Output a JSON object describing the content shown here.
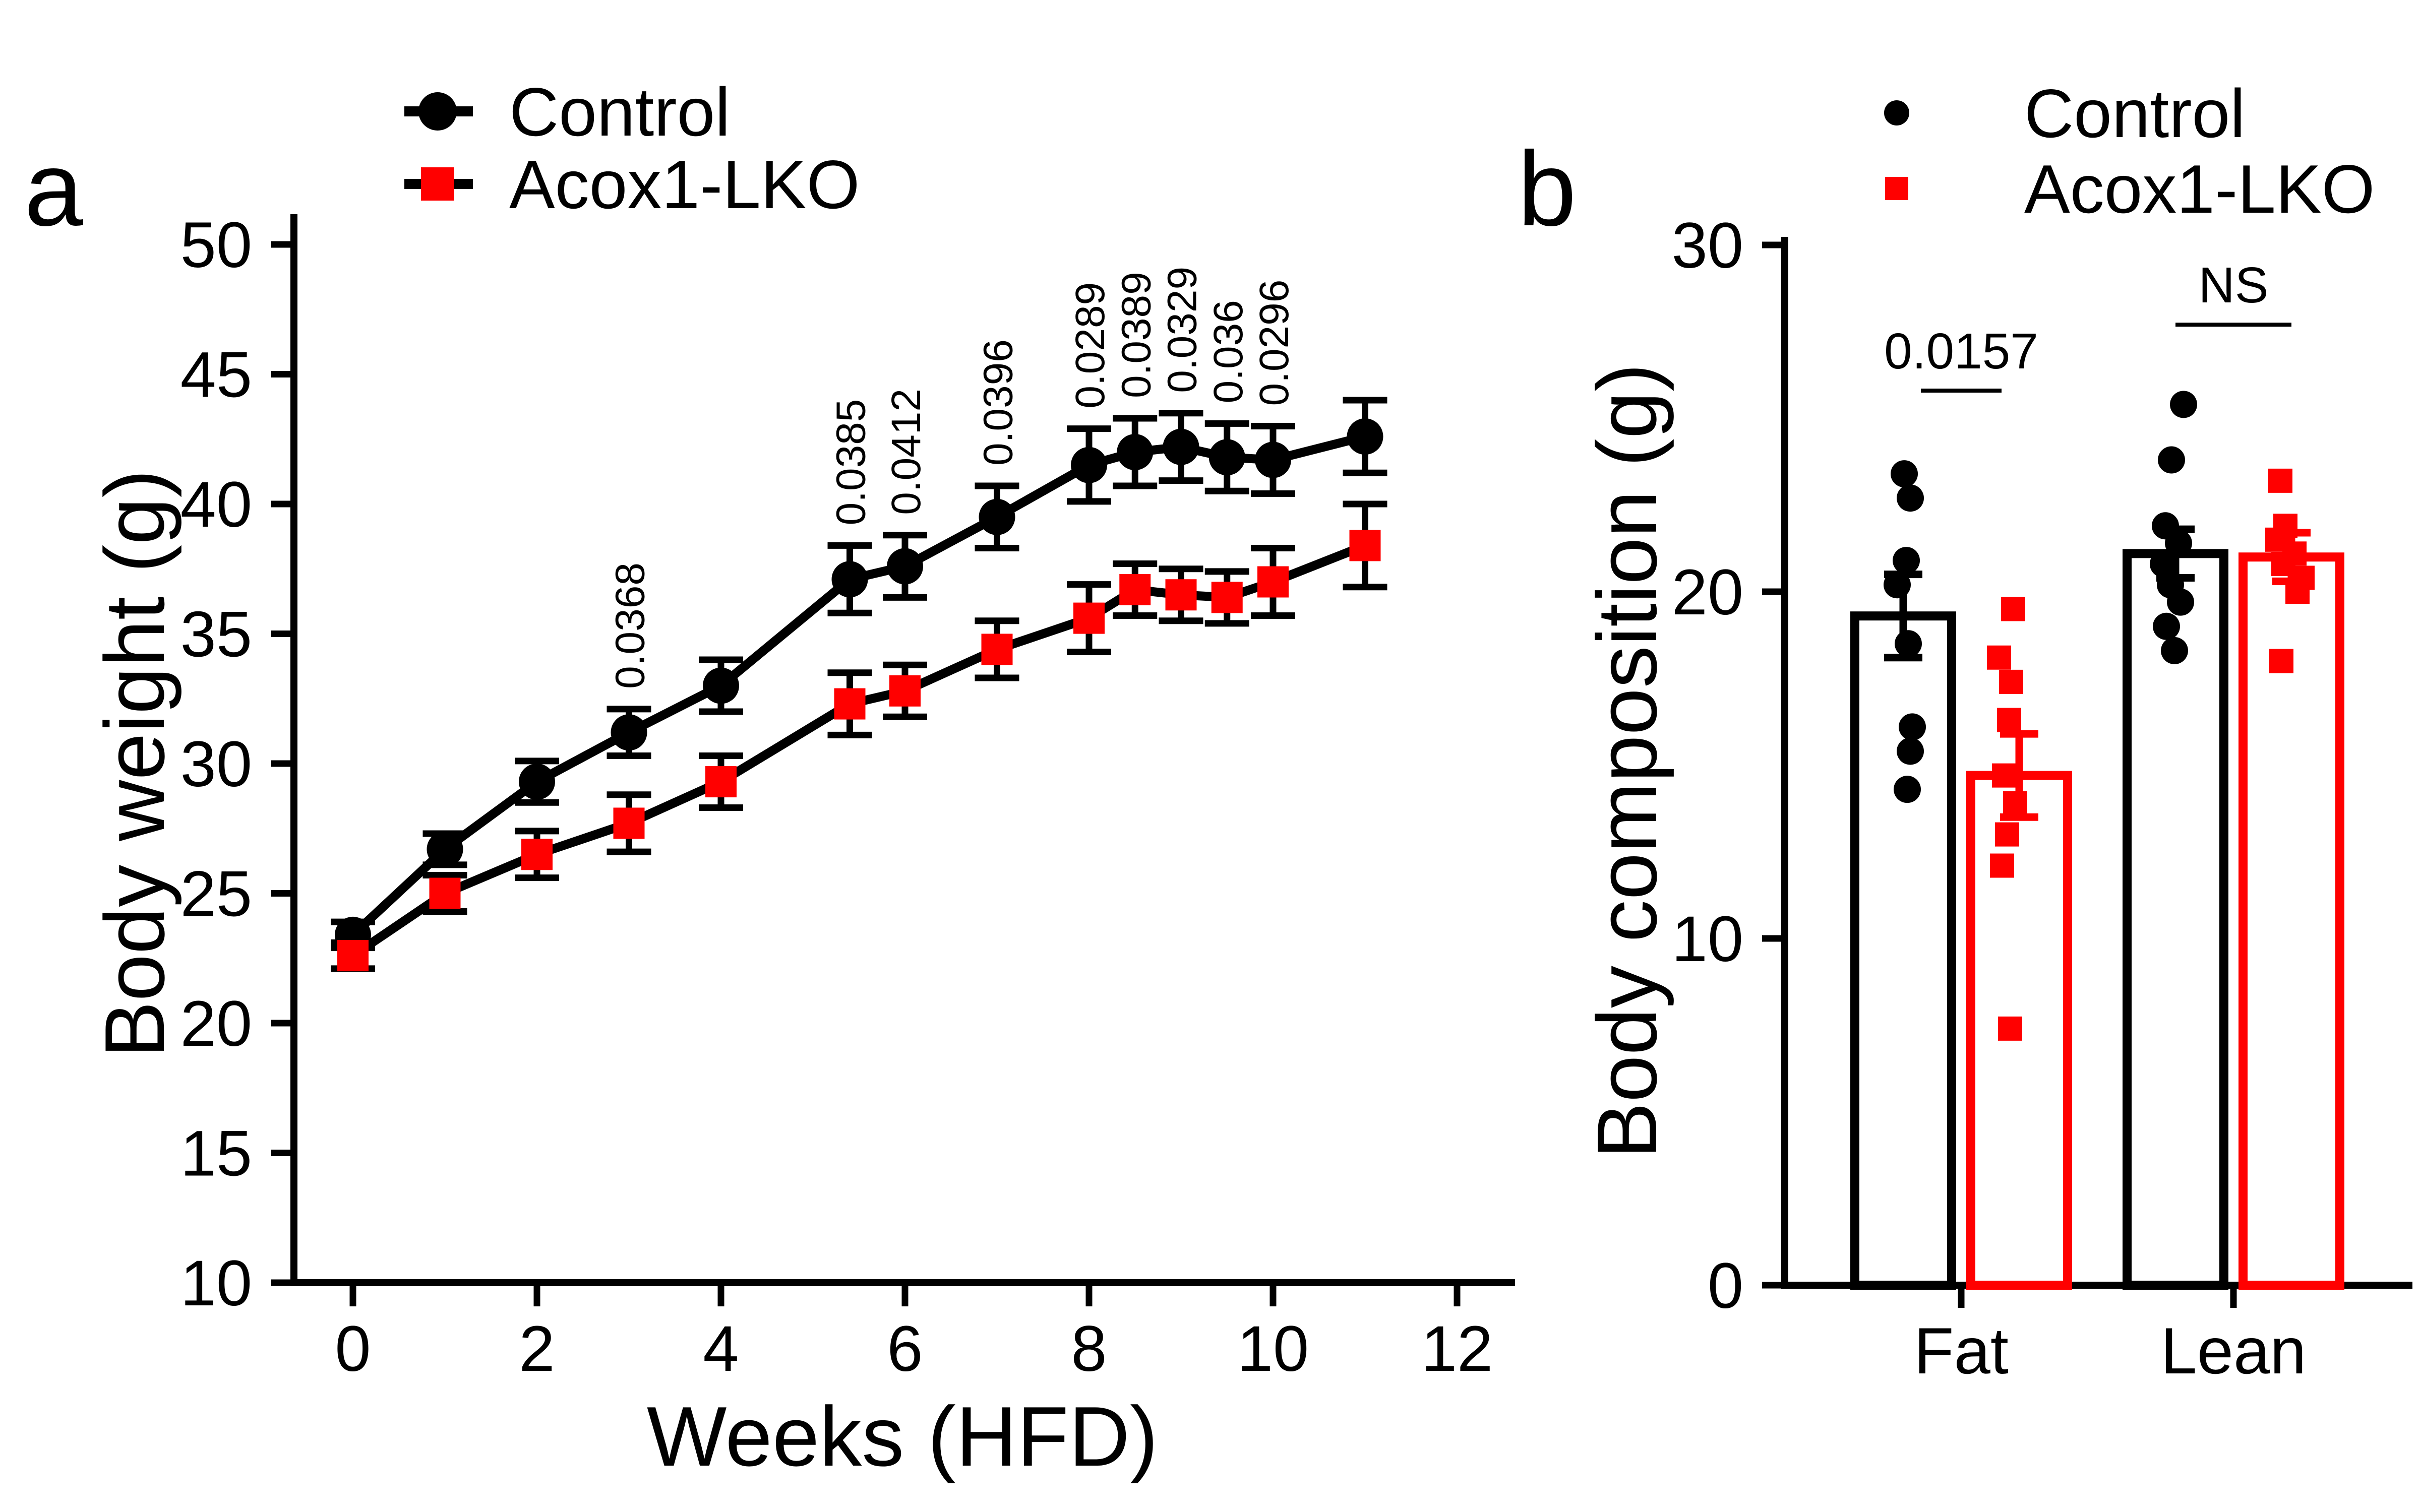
{
  "panel_a": {
    "letter": "a",
    "legend": [
      {
        "label": "Control",
        "marker": "circle",
        "marker_color": "#000000"
      },
      {
        "label": "Acox1-LKO",
        "marker": "square",
        "marker_color": "#ff0000"
      }
    ],
    "chart_data": {
      "type": "line",
      "xlabel": "Weeks (HFD)",
      "ylabel": "Body weight (g)",
      "xlim": [
        0,
        12
      ],
      "xticks": [
        0,
        2,
        4,
        6,
        8,
        10,
        12
      ],
      "ylim": [
        10,
        50
      ],
      "yticks": [
        10,
        15,
        20,
        25,
        30,
        35,
        40,
        45,
        50
      ],
      "grid": false,
      "legend_position": "top-left",
      "x": [
        0,
        1,
        2,
        3,
        4,
        5.4,
        6,
        7,
        8,
        8.5,
        9,
        9.5,
        10,
        11
      ],
      "series": [
        {
          "name": "Control",
          "marker": "circle",
          "color": "#000000",
          "line_color": "#000000",
          "values": [
            23.4,
            26.7,
            29.3,
            31.2,
            33.0,
            37.1,
            37.6,
            39.5,
            41.5,
            42.0,
            42.2,
            41.8,
            41.7,
            42.6
          ],
          "errors": [
            0.5,
            0.6,
            0.8,
            0.9,
            1.0,
            1.3,
            1.2,
            1.2,
            1.4,
            1.3,
            1.3,
            1.3,
            1.3,
            1.4
          ]
        },
        {
          "name": "Acox1-LKO",
          "marker": "square",
          "color": "#ff0000",
          "line_color": "#000000",
          "values": [
            22.6,
            25.0,
            26.5,
            27.7,
            29.3,
            32.3,
            32.8,
            34.4,
            35.6,
            36.7,
            36.5,
            36.4,
            37.0,
            38.4
          ],
          "errors": [
            0.5,
            0.7,
            0.9,
            1.1,
            1.0,
            1.2,
            1.0,
            1.1,
            1.3,
            1.0,
            1.0,
            1.0,
            1.3,
            1.6
          ]
        }
      ],
      "annotations": [
        {
          "x": 3,
          "label": "0.0368"
        },
        {
          "x": 5.4,
          "label": "0.0385"
        },
        {
          "x": 6,
          "label": "0.0412"
        },
        {
          "x": 7,
          "label": "0.0396"
        },
        {
          "x": 8,
          "label": "0.0289"
        },
        {
          "x": 8.5,
          "label": "0.0389"
        },
        {
          "x": 9,
          "label": "0.0329"
        },
        {
          "x": 9.5,
          "label": "0.036"
        },
        {
          "x": 10,
          "label": "0.0296"
        }
      ]
    }
  },
  "panel_b": {
    "letter": "b",
    "legend": [
      {
        "label": "Control",
        "marker": "circle",
        "marker_color": "#000000"
      },
      {
        "label": "Acox1-LKO",
        "marker": "square",
        "marker_color": "#ff0000"
      }
    ],
    "chart_data": {
      "type": "bar",
      "ylabel": "Body composition (g)",
      "ylim": [
        0,
        30
      ],
      "yticks": [
        0,
        10,
        20,
        30
      ],
      "grid": false,
      "legend_position": "top-right",
      "categories": [
        "Fat",
        "Lean"
      ],
      "series_names": [
        "Control",
        "Acox1-LKO"
      ],
      "groups": [
        {
          "category": "Fat",
          "significance": "0.0157",
          "sig_line_y": 25.8,
          "sig_half_width": 80,
          "bars": [
            {
              "name": "Control",
              "color": "#000000",
              "mean": 19.3,
              "sem": 1.2,
              "points": [
                23.4,
                22.7,
                20.9,
                20.2,
                18.5,
                16.1,
                15.4,
                14.3
              ],
              "jitter": [
                2,
                14,
                6,
                -12,
                10,
                18,
                14,
                8
              ]
            },
            {
              "name": "Acox1-LKO",
              "color": "#ff0000",
              "mean": 14.7,
              "sem": 1.2,
              "points": [
                19.5,
                18.1,
                17.4,
                16.3,
                14.7,
                13.9,
                13.0,
                12.1,
                7.4
              ],
              "jitter": [
                -12,
                -40,
                -16,
                -20,
                -30,
                -8,
                -24,
                -34,
                -18
              ]
            }
          ]
        },
        {
          "category": "Lean",
          "significance": "NS",
          "sig_line_y": 27.7,
          "sig_half_width": 115,
          "bars": [
            {
              "name": "Control",
              "color": "#000000",
              "mean": 21.1,
              "sem": 0.7,
              "points": [
                25.4,
                23.8,
                21.9,
                21.4,
                20.8,
                20.2,
                19.7,
                19.0,
                18.3
              ],
              "jitter": [
                16,
                -8,
                -20,
                6,
                -24,
                -10,
                10,
                -18,
                -2
              ]
            },
            {
              "name": "Acox1-LKO",
              "color": "#ff0000",
              "mean": 21.0,
              "sem": 0.7,
              "points": [
                23.2,
                21.9,
                21.5,
                21.1,
                20.8,
                20.4,
                20.0,
                18.0
              ],
              "jitter": [
                -22,
                -12,
                -28,
                6,
                -16,
                22,
                12,
                -20
              ]
            }
          ]
        }
      ]
    }
  }
}
